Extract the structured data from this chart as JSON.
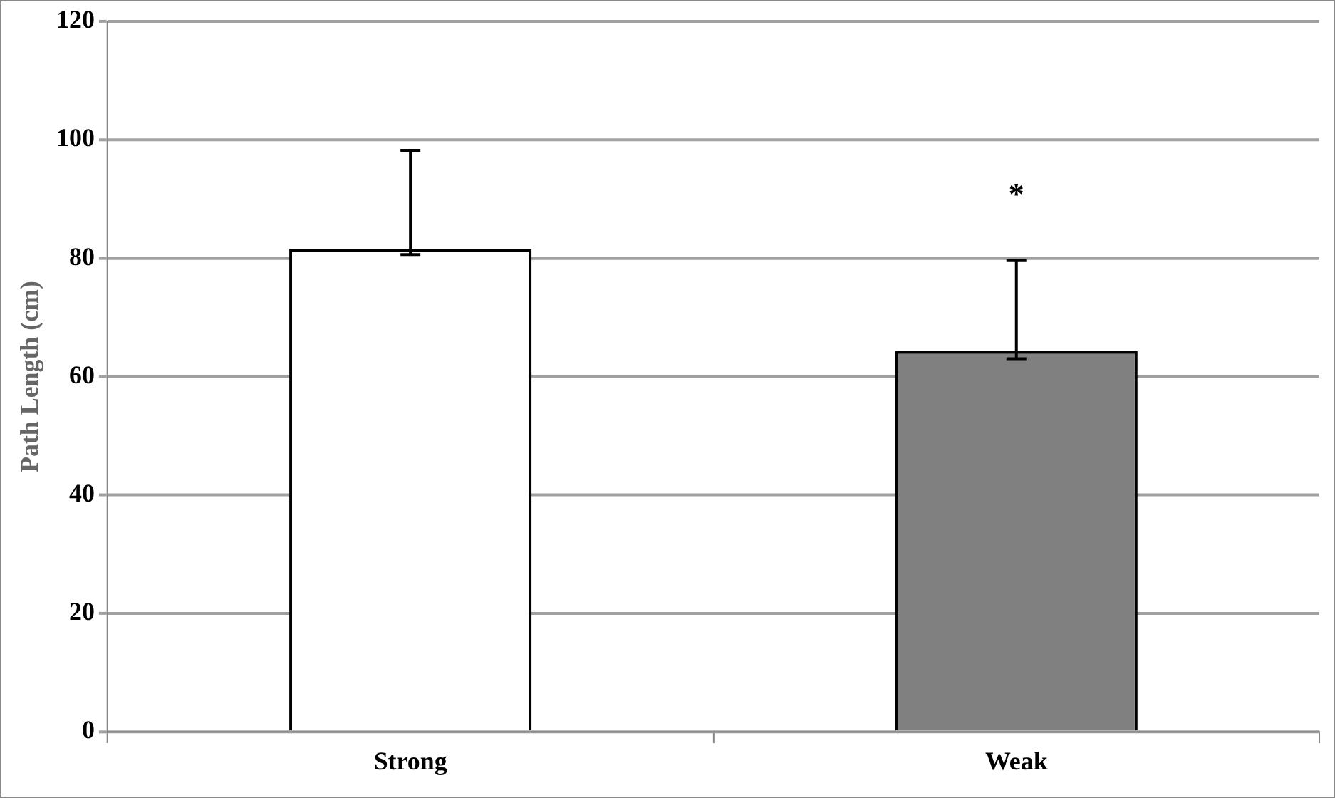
{
  "chart_data": {
    "type": "bar",
    "ylabel": "Path Length (cm)",
    "categories": [
      "Strong",
      "Weak"
    ],
    "values": [
      81.6,
      64.3
    ],
    "colors": [
      "#ffffff",
      "#808080"
    ],
    "errors": [
      [
        80.6,
        98.2
      ],
      [
        63.0,
        79.6
      ]
    ],
    "ylim": [
      0,
      120
    ],
    "yticks": [
      0,
      20,
      40,
      60,
      80,
      100,
      120
    ],
    "grid": "y",
    "legend": false,
    "annotations": [
      "*"
    ]
  }
}
